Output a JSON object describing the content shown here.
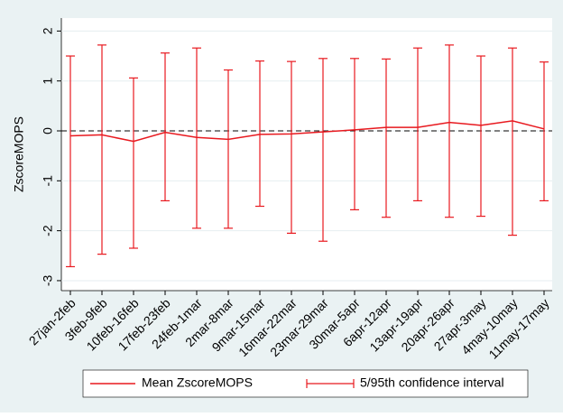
{
  "chart_data": {
    "type": "errorline",
    "y_label": "ZscoreMOPS",
    "categories": [
      "27jan-2feb",
      "3feb-9feb",
      "10feb-16feb",
      "17feb-23feb",
      "24feb-1mar",
      "2mar-8mar",
      "9mar-15mar",
      "16mar-22mar",
      "23mar-29mar",
      "30mar-5apr",
      "6apr-12apr",
      "13apr-19apr",
      "20apr-26apr",
      "27apr-3may",
      "4may-10may",
      "11may-17may"
    ],
    "series": [
      {
        "name": "Mean ZscoreMOPS",
        "color": "#e8191f",
        "values": [
          -0.1,
          -0.08,
          -0.21,
          -0.03,
          -0.13,
          -0.17,
          -0.07,
          -0.06,
          -0.02,
          0.02,
          0.07,
          0.07,
          0.17,
          0.11,
          0.2,
          0.04
        ]
      },
      {
        "name": "5/95th confidence interval",
        "color": "#e8191f",
        "upper": [
          1.5,
          1.72,
          1.06,
          1.56,
          1.66,
          1.22,
          1.4,
          1.39,
          1.45,
          1.45,
          1.44,
          1.66,
          1.72,
          1.5,
          1.66,
          1.38
        ],
        "lower": [
          -2.72,
          -2.47,
          -2.35,
          -1.4,
          -1.95,
          -1.95,
          -1.51,
          -2.05,
          -2.21,
          -1.58,
          -1.73,
          -1.4,
          -1.73,
          -1.71,
          -2.09,
          -1.4
        ]
      }
    ],
    "hline": 0,
    "ylim": [
      -3.2,
      2.26
    ],
    "yticks": [
      -3,
      -2,
      -1,
      0,
      1,
      2
    ],
    "grid": true
  }
}
